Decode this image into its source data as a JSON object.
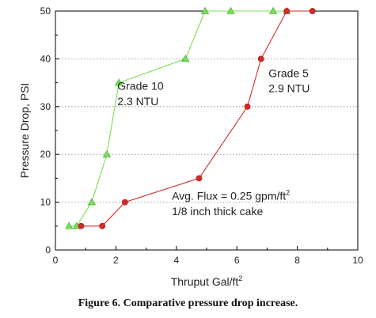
{
  "caption": "Figure 6.  Comparative pressure drop increase.",
  "chart_data": {
    "type": "line",
    "title": "",
    "xlabel": "Thruput Gal/ft",
    "xlabel_sup": "2",
    "ylabel": "Pressure Drop, PSI",
    "xlim": [
      0,
      10
    ],
    "ylim": [
      0,
      50
    ],
    "xticks": [
      "0",
      "2",
      "4",
      "6",
      "8",
      "10"
    ],
    "yticks": [
      "0",
      "10",
      "20",
      "30",
      "40",
      "50"
    ],
    "grid": "dotted horizontal",
    "annotations": [
      {
        "text": "Grade 10",
        "x": 2.05,
        "y": 33.5
      },
      {
        "text": "2.3 NTU",
        "x": 2.05,
        "y": 30.3
      },
      {
        "text": "Grade 5",
        "x": 7.05,
        "y": 36.2
      },
      {
        "text": "2.9 NTU",
        "x": 7.05,
        "y": 33.0
      },
      {
        "text": "Avg. Flux = 0.25 gpm/ft",
        "sup": "2",
        "x": 3.85,
        "y": 10.5
      },
      {
        "text": "1/8 inch thick cake",
        "x": 3.85,
        "y": 7.3
      }
    ],
    "series": [
      {
        "color": "#7ddc5a",
        "marker": "triangle",
        "x": [
          0.45,
          0.7,
          1.2,
          1.7,
          2.1,
          4.3,
          4.95,
          5.8,
          7.2,
          7.65
        ],
        "y": [
          5,
          5,
          10,
          20,
          35,
          40,
          50,
          50,
          50,
          50
        ]
      },
      {
        "color": "#d42a2a",
        "marker": "circle",
        "x": [
          0.85,
          1.55,
          2.3,
          4.75,
          6.35,
          6.8,
          7.65,
          8.5
        ],
        "y": [
          5,
          5,
          10,
          15,
          30,
          40,
          50,
          50
        ]
      }
    ]
  }
}
